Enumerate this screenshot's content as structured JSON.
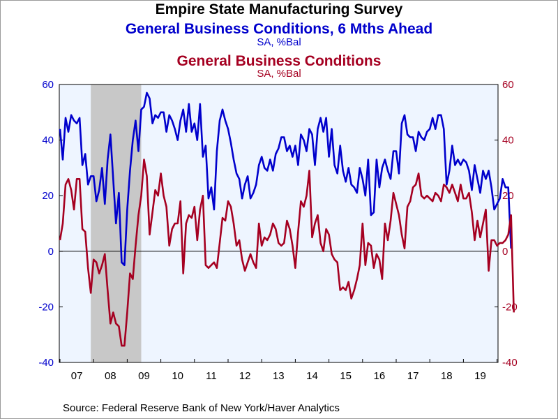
{
  "chart_data": {
    "type": "line",
    "title": "Empire State Manufacturing Survey",
    "source": "Source:  Federal Reserve Bank of New York/Haver Analytics",
    "x_tick_labels": [
      "07",
      "08",
      "09",
      "10",
      "11",
      "12",
      "13",
      "14",
      "15",
      "16",
      "17",
      "18",
      "19"
    ],
    "x_start_year": 2007,
    "left_axis": {
      "ylim": [
        -40,
        60
      ],
      "ticks": [
        60,
        40,
        20,
        0,
        -20,
        -40
      ],
      "tick_labels": [
        "60",
        "40",
        "20",
        "0",
        "-20",
        "-40"
      ]
    },
    "right_axis": {
      "ylim": [
        -40,
        60
      ],
      "ticks": [
        60,
        40,
        20,
        0,
        -20,
        -40
      ],
      "tick_labels": [
        "60",
        "40",
        "20",
        "0",
        "-20",
        "-40"
      ]
    },
    "recession_shading": {
      "start": "2007-12",
      "end": "2009-06",
      "color": "#c8c8c8"
    },
    "plot_background": "#eef5ff",
    "series": [
      {
        "name": "General Business Conditions, 6 Mths Ahead",
        "units": "SA, %Bal",
        "color": "#0000cc",
        "axis": "left",
        "start": "2007-01",
        "values": [
          44,
          33,
          48,
          43,
          49,
          47,
          46,
          48,
          31,
          35,
          24,
          27,
          27,
          18,
          22,
          30,
          17,
          33,
          42,
          26,
          10,
          21,
          -4,
          -5,
          15,
          29,
          40,
          47,
          36,
          51,
          52,
          57,
          55,
          46,
          49,
          48,
          50,
          50,
          43,
          49,
          47,
          44,
          40,
          47,
          51,
          43,
          53,
          43,
          46,
          40,
          53,
          34,
          38,
          19,
          23,
          15,
          36,
          47,
          51,
          47,
          44,
          39,
          33,
          28,
          26,
          19,
          24,
          27,
          19,
          21,
          24,
          31,
          34,
          30,
          29,
          33,
          29,
          35,
          37,
          41,
          41,
          36,
          38,
          34,
          38,
          31,
          42,
          40,
          36,
          44,
          42,
          31,
          44,
          48,
          43,
          48,
          34,
          44,
          31,
          28,
          38,
          29,
          25,
          30,
          24,
          23,
          21,
          30,
          26,
          20,
          33,
          13,
          14,
          33,
          23,
          30,
          33,
          29,
          26,
          36,
          36,
          28,
          46,
          49,
          42,
          41,
          41,
          36,
          43,
          41,
          40,
          43,
          44,
          48,
          44,
          49,
          49,
          44,
          24,
          29,
          38,
          31,
          33,
          31,
          33,
          32,
          29,
          22,
          31,
          26,
          21,
          29,
          26,
          29,
          23,
          15,
          17,
          19,
          26,
          23,
          23,
          1
        ]
      },
      {
        "name": "General Business Conditions",
        "units": "SA, %Bal",
        "color": "#a50021",
        "axis": "right",
        "start": "2007-01",
        "values": [
          4,
          10,
          24,
          26,
          22,
          15,
          26,
          26,
          8,
          7,
          -6,
          -15,
          -3,
          -4,
          -8,
          -5,
          -1,
          -14,
          -26,
          -22,
          -26,
          -27,
          -34,
          -34,
          -22,
          -8,
          -10,
          2,
          13,
          20,
          33,
          27,
          6,
          14,
          22,
          20,
          28,
          20,
          16,
          2,
          8,
          10,
          10,
          18,
          -8,
          10,
          13,
          12,
          16,
          4,
          15,
          20,
          -5,
          -6,
          -5,
          -4,
          -6,
          3,
          12,
          11,
          18,
          16,
          10,
          2,
          4,
          -3,
          -7,
          -4,
          -1,
          -4,
          -6,
          10,
          2,
          5,
          4,
          6,
          10,
          8,
          3,
          2,
          3,
          11,
          8,
          2,
          -6,
          7,
          18,
          16,
          20,
          29,
          5,
          10,
          13,
          3,
          0,
          8,
          6,
          -1,
          -3,
          -4,
          -14,
          -13,
          -14,
          -11,
          -17,
          -14,
          -10,
          -5,
          10,
          -5,
          3,
          2,
          -6,
          -1,
          -3,
          -10,
          10,
          4,
          11,
          21,
          17,
          13,
          6,
          1,
          16,
          18,
          23,
          24,
          28,
          20,
          19,
          20,
          19,
          18,
          21,
          20,
          18,
          24,
          23,
          21,
          24,
          21,
          18,
          24,
          19,
          19,
          21,
          14,
          4,
          11,
          5,
          10,
          15,
          -7,
          4,
          4,
          2,
          3,
          3,
          4,
          6,
          13,
          -22
        ]
      }
    ]
  }
}
